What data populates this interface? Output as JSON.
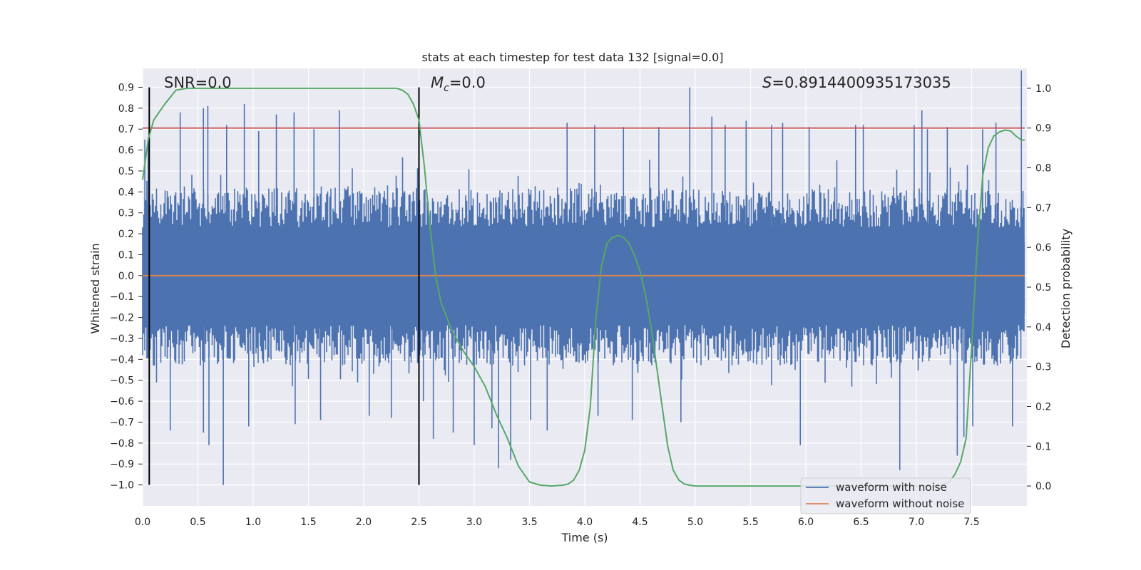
{
  "chart_data": {
    "type": "line",
    "title": "stats at each timestep for test data 132 [signal=0.0]",
    "xlabel": "Time (s)",
    "ylabel": "Whitened strain",
    "ylabel_right": "Detection probability",
    "xlim": [
      0.0,
      8.0
    ],
    "ylim": [
      -1.1,
      0.99
    ],
    "ylim_right": [
      -0.05,
      1.05
    ],
    "x_ticks": [
      0.0,
      0.5,
      1.0,
      1.5,
      2.0,
      2.5,
      3.0,
      3.5,
      4.0,
      4.5,
      5.0,
      5.5,
      6.0,
      6.5,
      7.0,
      7.5
    ],
    "x_tick_labels": [
      "0.0",
      "0.5",
      "1.0",
      "1.5",
      "2.0",
      "2.5",
      "3.0",
      "3.5",
      "4.0",
      "4.5",
      "5.0",
      "5.5",
      "6.0",
      "6.5",
      "7.0",
      "7.5"
    ],
    "y_ticks": [
      0.9,
      0.8,
      0.7,
      0.6,
      0.5,
      0.4,
      0.3,
      0.2,
      0.1,
      0.0,
      -0.1,
      -0.2,
      -0.3,
      -0.4,
      -0.5,
      -0.6,
      -0.7,
      -0.8,
      -0.9,
      -1.0
    ],
    "y_tick_labels": [
      "0.9",
      "0.8",
      "0.7",
      "0.6",
      "0.5",
      "0.4",
      "0.3",
      "0.2",
      "0.1",
      "0.0",
      "−0.1",
      "−0.2",
      "−0.3",
      "−0.4",
      "−0.5",
      "−0.6",
      "−0.7",
      "−0.8",
      "−0.9",
      "−1.0"
    ],
    "y_right_ticks": [
      1.0,
      0.9,
      0.8,
      0.7,
      0.6,
      0.5,
      0.4,
      0.3,
      0.2,
      0.1,
      0.0
    ],
    "y_right_tick_labels": [
      "1.0",
      "0.9",
      "0.8",
      "0.7",
      "0.6",
      "0.5",
      "0.4",
      "0.3",
      "0.2",
      "0.1",
      "0.0"
    ],
    "grid": true,
    "legend_placement": "lower-right",
    "annotations": {
      "snr": "SNR=0.0",
      "mc_symbol": "M",
      "mc_sub": "c",
      "mc_value": "=0.0",
      "s_symbol": "S",
      "s_value": "=0.8914400935173035"
    },
    "colors": {
      "background": "#eaeaf2",
      "grid": "#ffffff",
      "noisy": "#4c72b0",
      "clean": "#dd8452",
      "probability": "#55a868",
      "threshold": "#c44e52",
      "marker": "#000000"
    },
    "vertical_markers": [
      0.06,
      2.5
    ],
    "marker_range": [
      -1.0,
      0.9
    ],
    "threshold_probability": 0.9,
    "series": [
      {
        "name": "waveform with noise",
        "kind": "noise-band",
        "x_range": [
          0.0,
          7.98
        ],
        "core_band": [
          -0.43,
          0.42
        ],
        "spikes": [
          [
            0.02,
            0.65
          ],
          [
            0.05,
            0.66
          ],
          [
            0.06,
            -0.45
          ],
          [
            0.34,
            0.78
          ],
          [
            0.55,
            0.8
          ],
          [
            0.59,
            0.81
          ],
          [
            0.73,
            -1.0
          ],
          [
            0.76,
            0.72
          ],
          [
            0.92,
            0.82
          ],
          [
            1.05,
            0.69
          ],
          [
            1.21,
            0.77
          ],
          [
            1.37,
            0.78
          ],
          [
            1.55,
            0.7
          ],
          [
            1.78,
            0.79
          ],
          [
            0.25,
            -0.74
          ],
          [
            0.55,
            -0.75
          ],
          [
            0.6,
            -0.81
          ],
          [
            0.96,
            -0.72
          ],
          [
            1.38,
            -0.71
          ],
          [
            1.61,
            -0.69
          ],
          [
            2.05,
            -0.67
          ],
          [
            2.25,
            -0.68
          ],
          [
            2.54,
            -0.6
          ],
          [
            2.63,
            -0.78
          ],
          [
            2.81,
            -0.75
          ],
          [
            3.0,
            -0.81
          ],
          [
            3.16,
            -0.73
          ],
          [
            3.22,
            -0.92
          ],
          [
            3.33,
            -0.88
          ],
          [
            3.51,
            -0.69
          ],
          [
            3.66,
            -0.74
          ],
          [
            3.84,
            0.73
          ],
          [
            4.09,
            0.72
          ],
          [
            4.12,
            -0.67
          ],
          [
            4.35,
            0.71
          ],
          [
            4.43,
            -0.69
          ],
          [
            4.67,
            0.71
          ],
          [
            4.87,
            -0.7
          ],
          [
            4.95,
            0.9
          ],
          [
            5.15,
            0.76
          ],
          [
            5.27,
            0.72
          ],
          [
            5.46,
            0.74
          ],
          [
            5.69,
            0.72
          ],
          [
            5.79,
            0.73
          ],
          [
            5.95,
            -0.81
          ],
          [
            6.03,
            0.71
          ],
          [
            6.45,
            0.72
          ],
          [
            6.52,
            0.72
          ],
          [
            6.85,
            -0.93
          ],
          [
            6.98,
            0.72
          ],
          [
            7.05,
            0.79
          ],
          [
            7.1,
            0.7
          ],
          [
            7.28,
            0.71
          ],
          [
            7.37,
            -0.86
          ],
          [
            7.51,
            -0.72
          ],
          [
            7.6,
            0.7
          ],
          [
            7.72,
            0.73
          ],
          [
            7.87,
            -0.72
          ],
          [
            7.95,
            0.98
          ],
          [
            7.43,
            -0.77
          ]
        ]
      },
      {
        "name": "waveform without noise",
        "x": [
          0.0,
          7.98
        ],
        "y": [
          0.0,
          0.0
        ]
      },
      {
        "name": "Detection probability",
        "axis": "right",
        "x": [
          0.0,
          0.05,
          0.1,
          0.2,
          0.3,
          0.4,
          0.6,
          1.0,
          1.5,
          2.0,
          2.2,
          2.3,
          2.35,
          2.4,
          2.45,
          2.5,
          2.55,
          2.6,
          2.65,
          2.7,
          2.8,
          2.9,
          3.0,
          3.1,
          3.2,
          3.3,
          3.4,
          3.5,
          3.6,
          3.7,
          3.8,
          3.85,
          3.9,
          3.95,
          4.0,
          4.05,
          4.1,
          4.15,
          4.2,
          4.25,
          4.3,
          4.35,
          4.4,
          4.45,
          4.5,
          4.55,
          4.6,
          4.65,
          4.7,
          4.75,
          4.8,
          4.85,
          4.9,
          4.95,
          5.0,
          5.1,
          5.5,
          6.0,
          6.5,
          7.0,
          7.2,
          7.3,
          7.35,
          7.4,
          7.45,
          7.5,
          7.55,
          7.6,
          7.65,
          7.7,
          7.75,
          7.8,
          7.85,
          7.9,
          7.95,
          7.98
        ],
        "y": [
          0.77,
          0.87,
          0.92,
          0.96,
          0.995,
          1.0,
          1.0,
          1.0,
          1.0,
          1.0,
          1.0,
          1.0,
          0.995,
          0.985,
          0.96,
          0.92,
          0.8,
          0.65,
          0.53,
          0.46,
          0.39,
          0.34,
          0.3,
          0.25,
          0.18,
          0.12,
          0.05,
          0.01,
          0.002,
          0.0,
          0.002,
          0.005,
          0.015,
          0.04,
          0.09,
          0.2,
          0.42,
          0.55,
          0.61,
          0.625,
          0.63,
          0.625,
          0.61,
          0.58,
          0.54,
          0.48,
          0.4,
          0.3,
          0.2,
          0.1,
          0.04,
          0.015,
          0.005,
          0.002,
          0.0,
          0.0,
          0.0,
          0.0,
          0.0,
          0.0,
          0.0,
          0.01,
          0.03,
          0.06,
          0.12,
          0.35,
          0.6,
          0.78,
          0.85,
          0.88,
          0.89,
          0.895,
          0.893,
          0.88,
          0.87,
          0.87
        ]
      }
    ]
  }
}
